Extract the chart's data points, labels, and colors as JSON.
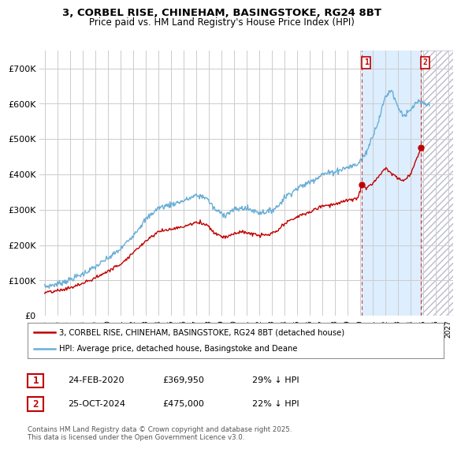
{
  "title_line1": "3, CORBEL RISE, CHINEHAM, BASINGSTOKE, RG24 8BT",
  "title_line2": "Price paid vs. HM Land Registry's House Price Index (HPI)",
  "ylim": [
    0,
    750000
  ],
  "yticks": [
    0,
    100000,
    200000,
    300000,
    400000,
    500000,
    600000,
    700000
  ],
  "ytick_labels": [
    "£0",
    "£100K",
    "£200K",
    "£300K",
    "£400K",
    "£500K",
    "£600K",
    "£700K"
  ],
  "xlim_start": 1994.6,
  "xlim_end": 2027.4,
  "hpi_color": "#6aaed6",
  "price_color": "#C00000",
  "purchase1_x": 2020.15,
  "purchase1_y": 369950,
  "purchase2_x": 2024.82,
  "purchase2_y": 475000,
  "legend_line1": "3, CORBEL RISE, CHINEHAM, BASINGSTOKE, RG24 8BT (detached house)",
  "legend_line2": "HPI: Average price, detached house, Basingstoke and Deane",
  "table_row1": [
    "1",
    "24-FEB-2020",
    "£369,950",
    "29% ↓ HPI"
  ],
  "table_row2": [
    "2",
    "25-OCT-2024",
    "£475,000",
    "22% ↓ HPI"
  ],
  "footer": "Contains HM Land Registry data © Crown copyright and database right 2025.\nThis data is licensed under the Open Government Licence v3.0.",
  "background_color": "#FFFFFF",
  "grid_color": "#CCCCCC",
  "fill_between_color": "#ddeeff",
  "hatched_region_start": 2024.82,
  "hatched_region_end": 2027.4
}
